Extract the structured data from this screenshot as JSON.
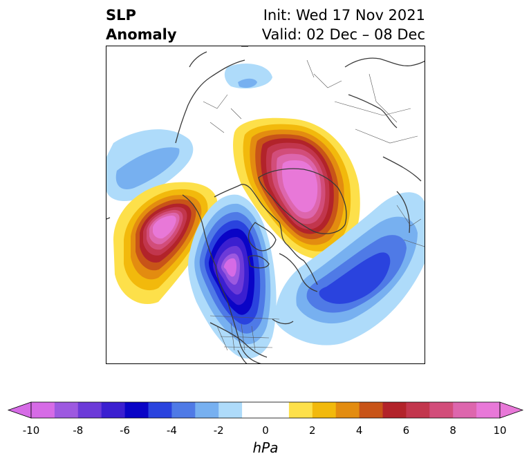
{
  "title": {
    "left_line1": "SLP",
    "left_line2": "Anomaly",
    "right_line1": "Init: Wed 17 Nov 2021",
    "right_line2": "Valid: 02 Dec – 08 Dec"
  },
  "colorbar": {
    "label": "hPa",
    "ticks": [
      "-10",
      "-8",
      "-6",
      "-4",
      "-2",
      "0",
      "2",
      "4",
      "6",
      "8",
      "10"
    ],
    "colors": [
      "#d66be6",
      "#9d59e0",
      "#6c3ad8",
      "#3b1fd0",
      "#0a04c6",
      "#2a43de",
      "#4f7ae6",
      "#77b0f0",
      "#aedbfa",
      "#ffffff",
      "#ffffff",
      "#fde04a",
      "#f2b90c",
      "#e38c10",
      "#c85418",
      "#b2232a",
      "#c2364d",
      "#d24d7a",
      "#dd66ad",
      "#e878d8"
    ],
    "under_color": "#d66be6",
    "over_color": "#e878d8"
  },
  "map": {
    "projection": "north-polar-stereographic",
    "anomaly_centers": [
      {
        "name": "Greenland-Arctic high",
        "sign": "positive",
        "max_hPa": 10
      },
      {
        "name": "Gulf of Alaska high",
        "sign": "positive",
        "max_hPa": 10
      },
      {
        "name": "Canada low",
        "sign": "negative",
        "min_hPa": -10
      },
      {
        "name": "North Atlantic low",
        "sign": "negative",
        "min_hPa": -6
      },
      {
        "name": "Siberia weak low",
        "sign": "negative",
        "min_hPa": -4
      },
      {
        "name": "North Pacific weak low",
        "sign": "negative",
        "min_hPa": -3
      }
    ]
  }
}
